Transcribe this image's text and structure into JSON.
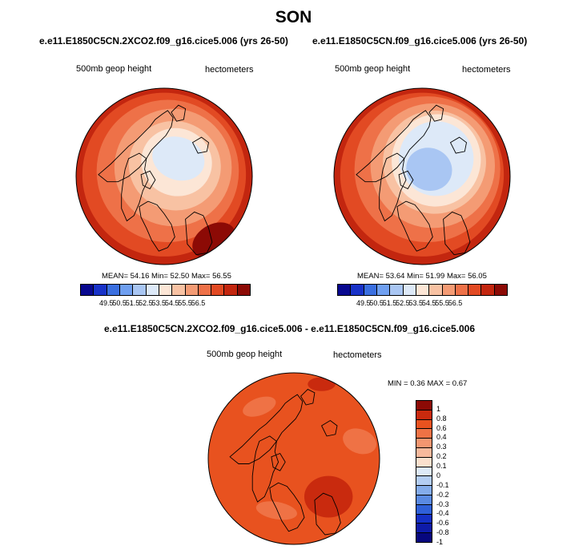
{
  "figure": {
    "title": "SON",
    "colors": {
      "scale": [
        "#08088f",
        "#1832c8",
        "#3a6fe0",
        "#6f9ff0",
        "#a9c6f3",
        "#dde9f8",
        "#fce6d6",
        "#f8c2a3",
        "#f49b74",
        "#ee7148",
        "#e24a23",
        "#c3260f",
        "#8c0a05"
      ],
      "diff_scale": [
        "#8c0a05",
        "#c92a0e",
        "#e8521f",
        "#ef7245",
        "#f39670",
        "#f7b99c",
        "#fbe0cd",
        "#deeaf8",
        "#b3cdf3",
        "#84aceb",
        "#5a8ae2",
        "#2f60d8",
        "#1430c5",
        "#0e1ba8",
        "#07077e"
      ],
      "land_outline": "#000000"
    },
    "panels": [
      {
        "title": "e.e11.E1850C5CN.2XCO2.f09_g16.cice5.006 (yrs 26-50)",
        "left_label": "500mb geop height",
        "right_label": "hectometers",
        "stats_text": "MEAN=  54.16  Min=  52.50  Max=  56.55",
        "mean": 54.16,
        "min": 52.5,
        "max": 56.55,
        "colorbar_labels": [
          "49.5",
          "50.5",
          "51.5",
          "52.5",
          "53.5",
          "54.5",
          "55.5",
          "56.5"
        ]
      },
      {
        "title": "e.e11.E1850C5CN.f09_g16.cice5.006 (yrs 26-50)",
        "left_label": "500mb geop height",
        "right_label": "hectometers",
        "stats_text": "MEAN=  53.64  Min=  51.99  Max=  56.05",
        "mean": 53.64,
        "min": 51.99,
        "max": 56.05,
        "colorbar_labels": [
          "49.5",
          "50.5",
          "51.5",
          "52.5",
          "53.5",
          "54.5",
          "55.5",
          "56.5"
        ]
      }
    ],
    "diff_panel": {
      "title": "e.e11.E1850C5CN.2XCO2.f09_g16.cice5.006 - e.e11.E1850C5CN.f09_g16.cice5.006",
      "left_label": "500mb geop height",
      "right_label": "hectometers",
      "stats_text": "MIN =   0.36 MAX =   0.67",
      "min": 0.36,
      "max": 0.67,
      "colorbar_labels": [
        "1",
        "0.8",
        "0.6",
        "0.4",
        "0.3",
        "0.2",
        "0.1",
        "0",
        "-0.1",
        "-0.2",
        "-0.3",
        "-0.4",
        "-0.6",
        "-0.8",
        "-1"
      ]
    }
  }
}
